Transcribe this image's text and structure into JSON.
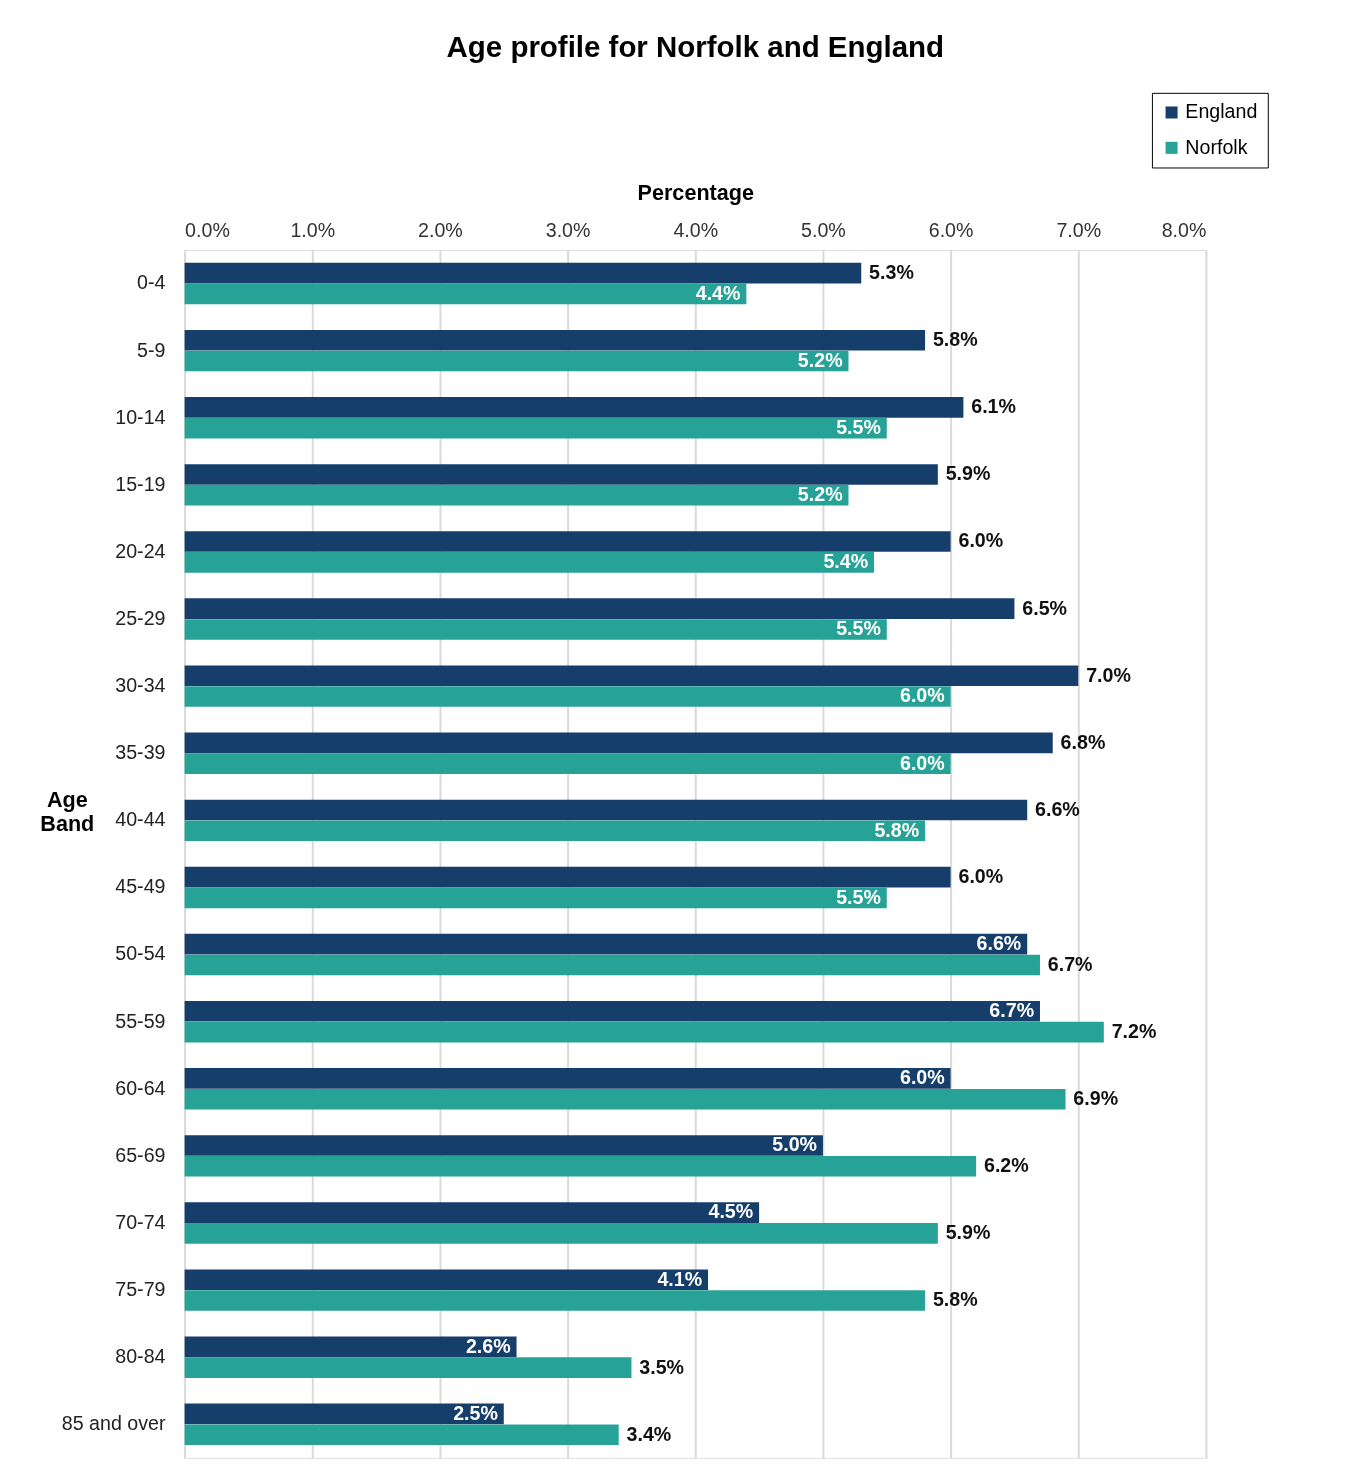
{
  "chart_data": {
    "type": "bar",
    "orientation": "horizontal",
    "title": "Age profile for Norfolk and England",
    "xlabel": "Percentage",
    "ylabel": "Age Band",
    "categories": [
      "0-4",
      "5-9",
      "10-14",
      "15-19",
      "20-24",
      "25-29",
      "30-34",
      "35-39",
      "40-44",
      "45-49",
      "50-54",
      "55-59",
      "60-64",
      "65-69",
      "70-74",
      "75-79",
      "80-84",
      "85 and over"
    ],
    "series": [
      {
        "name": "England",
        "color": "#163e6b",
        "values": [
          5.3,
          5.8,
          6.1,
          5.9,
          6.0,
          6.5,
          7.0,
          6.8,
          6.6,
          6.0,
          6.6,
          6.7,
          6.0,
          5.0,
          4.5,
          4.1,
          2.6,
          2.5
        ],
        "value_labels": [
          "5.3%",
          "5.8%",
          "6.1%",
          "5.9%",
          "6.0%",
          "6.5%",
          "7.0%",
          "6.8%",
          "6.6%",
          "6.0%",
          "6.6%",
          "6.7%",
          "6.0%",
          "5.0%",
          "4.5%",
          "4.1%",
          "2.6%",
          "2.5%"
        ]
      },
      {
        "name": "Norfolk",
        "color": "#27a297",
        "values": [
          4.4,
          5.2,
          5.5,
          5.2,
          5.4,
          5.5,
          6.0,
          6.0,
          5.8,
          5.5,
          6.7,
          7.2,
          6.9,
          6.2,
          5.9,
          5.8,
          3.5,
          3.4
        ],
        "value_labels": [
          "4.4%",
          "5.2%",
          "5.5%",
          "5.2%",
          "5.4%",
          "5.5%",
          "6.0%",
          "6.0%",
          "5.8%",
          "5.5%",
          "6.7%",
          "7.2%",
          "6.9%",
          "6.2%",
          "5.9%",
          "5.8%",
          "3.5%",
          "3.4%"
        ]
      }
    ],
    "xlim": [
      0,
      8
    ],
    "xticks": [
      {
        "value": 0,
        "label": "0.0%"
      },
      {
        "value": 1,
        "label": "1.0%"
      },
      {
        "value": 2,
        "label": "2.0%"
      },
      {
        "value": 3,
        "label": "3.0%"
      },
      {
        "value": 4,
        "label": "4.0%"
      },
      {
        "value": 5,
        "label": "5.0%"
      },
      {
        "value": 6,
        "label": "6.0%"
      },
      {
        "value": 7,
        "label": "7.0%"
      },
      {
        "value": 8,
        "label": "8.0%"
      }
    ],
    "grid": "x",
    "legend": "top right"
  }
}
